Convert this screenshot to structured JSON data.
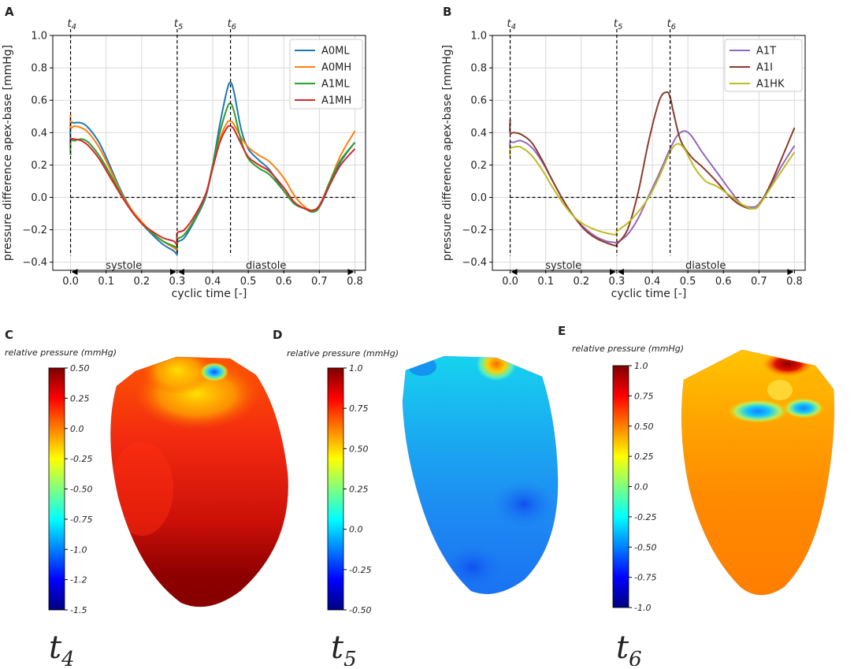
{
  "chart_data": [
    {
      "id": "A",
      "type": "line",
      "panel_label": "A",
      "xlabel": "cyclic time [-]",
      "ylabel": "pressure difference apex-base [mmHg]",
      "xlim": [
        -0.05,
        0.83
      ],
      "ylim": [
        -0.45,
        1.0
      ],
      "xticks": [
        0.0,
        0.1,
        0.2,
        0.3,
        0.4,
        0.5,
        0.6,
        0.7,
        0.8
      ],
      "xtick_labels": [
        "0.0",
        "0.1",
        "0.2",
        "0.3",
        "0.4",
        "0.5",
        "0.6",
        "0.7",
        "0.8"
      ],
      "yticks": [
        -0.4,
        -0.2,
        0.0,
        0.2,
        0.4,
        0.6,
        0.8,
        1.0
      ],
      "ytick_labels": [
        "−0.4",
        "−0.2",
        "0.0",
        "0.2",
        "0.4",
        "0.6",
        "0.8",
        "1.0"
      ],
      "grid": true,
      "legend_position": "top-right",
      "time_markers": [
        {
          "x": 0.0,
          "label": "t",
          "sub": "4"
        },
        {
          "x": 0.3,
          "label": "t",
          "sub": "5"
        },
        {
          "x": 0.45,
          "label": "t",
          "sub": "6"
        }
      ],
      "phases": [
        {
          "label": "systole",
          "from": 0.0,
          "to": 0.3
        },
        {
          "label": "diastole",
          "from": 0.3,
          "to": 0.8
        }
      ],
      "series": [
        {
          "name": "A0ML",
          "color": "#1f77b4",
          "x": [
            0.0,
            0.0,
            0.01,
            0.03,
            0.05,
            0.08,
            0.11,
            0.14,
            0.17,
            0.2,
            0.23,
            0.26,
            0.29,
            0.3,
            0.3,
            0.32,
            0.35,
            0.38,
            0.4,
            0.42,
            0.44,
            0.45,
            0.46,
            0.48,
            0.5,
            0.53,
            0.56,
            0.6,
            0.63,
            0.66,
            0.68,
            0.7,
            0.73,
            0.76,
            0.8
          ],
          "y": [
            0.3,
            0.45,
            0.46,
            0.46,
            0.43,
            0.34,
            0.2,
            0.05,
            -0.07,
            -0.16,
            -0.23,
            -0.29,
            -0.33,
            -0.35,
            -0.28,
            -0.25,
            -0.14,
            0.0,
            0.2,
            0.45,
            0.66,
            0.71,
            0.65,
            0.42,
            0.3,
            0.23,
            0.17,
            0.04,
            -0.04,
            -0.07,
            -0.08,
            -0.06,
            0.08,
            0.22,
            0.34
          ]
        },
        {
          "name": "A0MH",
          "color": "#ff7f0e",
          "x": [
            0.0,
            0.0,
            0.01,
            0.03,
            0.05,
            0.08,
            0.11,
            0.14,
            0.17,
            0.2,
            0.23,
            0.26,
            0.29,
            0.3,
            0.3,
            0.32,
            0.35,
            0.38,
            0.4,
            0.42,
            0.44,
            0.45,
            0.46,
            0.48,
            0.5,
            0.53,
            0.56,
            0.6,
            0.63,
            0.66,
            0.68,
            0.7,
            0.73,
            0.76,
            0.8
          ],
          "y": [
            0.51,
            0.43,
            0.44,
            0.43,
            0.4,
            0.31,
            0.18,
            0.04,
            -0.07,
            -0.15,
            -0.22,
            -0.27,
            -0.31,
            -0.32,
            -0.26,
            -0.23,
            -0.13,
            0.01,
            0.2,
            0.36,
            0.46,
            0.47,
            0.45,
            0.37,
            0.31,
            0.26,
            0.22,
            0.12,
            0.01,
            -0.06,
            -0.08,
            -0.05,
            0.1,
            0.26,
            0.41
          ]
        },
        {
          "name": "A1ML",
          "color": "#2ca02c",
          "x": [
            0.0,
            0.0,
            0.01,
            0.03,
            0.05,
            0.08,
            0.11,
            0.14,
            0.17,
            0.2,
            0.23,
            0.26,
            0.29,
            0.3,
            0.3,
            0.32,
            0.35,
            0.38,
            0.4,
            0.42,
            0.44,
            0.45,
            0.46,
            0.48,
            0.5,
            0.53,
            0.56,
            0.6,
            0.63,
            0.66,
            0.68,
            0.7,
            0.73,
            0.76,
            0.8
          ],
          "y": [
            0.26,
            0.35,
            0.35,
            0.36,
            0.34,
            0.26,
            0.15,
            0.03,
            -0.08,
            -0.16,
            -0.22,
            -0.27,
            -0.3,
            -0.31,
            -0.26,
            -0.23,
            -0.13,
            0.01,
            0.2,
            0.4,
            0.55,
            0.58,
            0.53,
            0.35,
            0.24,
            0.18,
            0.14,
            0.04,
            -0.04,
            -0.07,
            -0.09,
            -0.06,
            0.1,
            0.23,
            0.34
          ]
        },
        {
          "name": "A1MH",
          "color": "#d62728",
          "x": [
            0.0,
            0.0,
            0.01,
            0.03,
            0.05,
            0.08,
            0.11,
            0.14,
            0.17,
            0.2,
            0.23,
            0.26,
            0.29,
            0.3,
            0.3,
            0.32,
            0.35,
            0.38,
            0.4,
            0.42,
            0.44,
            0.45,
            0.46,
            0.48,
            0.5,
            0.53,
            0.56,
            0.6,
            0.63,
            0.66,
            0.68,
            0.7,
            0.73,
            0.76,
            0.8
          ],
          "y": [
            0.33,
            0.36,
            0.36,
            0.35,
            0.32,
            0.24,
            0.13,
            0.02,
            -0.08,
            -0.16,
            -0.21,
            -0.25,
            -0.27,
            -0.29,
            -0.22,
            -0.2,
            -0.11,
            0.02,
            0.18,
            0.34,
            0.43,
            0.44,
            0.42,
            0.33,
            0.25,
            0.2,
            0.16,
            0.06,
            -0.03,
            -0.07,
            -0.08,
            -0.05,
            0.08,
            0.2,
            0.3
          ]
        }
      ]
    },
    {
      "id": "B",
      "type": "line",
      "panel_label": "B",
      "xlabel": "cyclic time [-]",
      "ylabel": "pressure difference apex-base [mmHg]",
      "xlim": [
        -0.05,
        0.83
      ],
      "ylim": [
        -0.45,
        1.0
      ],
      "xticks": [
        0.0,
        0.1,
        0.2,
        0.3,
        0.4,
        0.5,
        0.6,
        0.7,
        0.8
      ],
      "xtick_labels": [
        "0.0",
        "0.1",
        "0.2",
        "0.3",
        "0.4",
        "0.5",
        "0.6",
        "0.7",
        "0.8"
      ],
      "yticks": [
        -0.4,
        -0.2,
        0.0,
        0.2,
        0.4,
        0.6,
        0.8,
        1.0
      ],
      "ytick_labels": [
        "−0.4",
        "−0.2",
        "0.0",
        "0.2",
        "0.4",
        "0.6",
        "0.8",
        "1.0"
      ],
      "grid": true,
      "legend_position": "top-right",
      "time_markers": [
        {
          "x": 0.0,
          "label": "t",
          "sub": "4"
        },
        {
          "x": 0.3,
          "label": "t",
          "sub": "5"
        },
        {
          "x": 0.45,
          "label": "t",
          "sub": "6"
        }
      ],
      "phases": [
        {
          "label": "systole",
          "from": 0.0,
          "to": 0.3
        },
        {
          "label": "diastole",
          "from": 0.3,
          "to": 0.8
        }
      ],
      "series": [
        {
          "name": "A1T",
          "color": "#9467bd",
          "x": [
            0.0,
            0.0,
            0.01,
            0.03,
            0.06,
            0.09,
            0.12,
            0.15,
            0.18,
            0.21,
            0.24,
            0.27,
            0.3,
            0.3,
            0.33,
            0.36,
            0.39,
            0.42,
            0.45,
            0.47,
            0.49,
            0.51,
            0.54,
            0.58,
            0.62,
            0.65,
            0.68,
            0.7,
            0.73,
            0.76,
            0.8
          ],
          "y": [
            0.3,
            0.34,
            0.34,
            0.35,
            0.31,
            0.22,
            0.1,
            -0.02,
            -0.12,
            -0.19,
            -0.24,
            -0.27,
            -0.28,
            -0.28,
            -0.23,
            -0.13,
            0.01,
            0.15,
            0.3,
            0.38,
            0.41,
            0.38,
            0.28,
            0.16,
            0.04,
            -0.04,
            -0.06,
            -0.04,
            0.06,
            0.18,
            0.32
          ]
        },
        {
          "name": "A1I",
          "color": "#8c3b2b",
          "x": [
            0.0,
            0.0,
            0.01,
            0.03,
            0.06,
            0.09,
            0.12,
            0.15,
            0.18,
            0.21,
            0.24,
            0.27,
            0.3,
            0.3,
            0.33,
            0.36,
            0.39,
            0.42,
            0.44,
            0.45,
            0.46,
            0.48,
            0.51,
            0.54,
            0.58,
            0.62,
            0.65,
            0.68,
            0.7,
            0.73,
            0.76,
            0.8
          ],
          "y": [
            0.48,
            0.4,
            0.4,
            0.39,
            0.34,
            0.23,
            0.1,
            -0.02,
            -0.12,
            -0.2,
            -0.25,
            -0.28,
            -0.3,
            -0.29,
            -0.2,
            0.03,
            0.35,
            0.6,
            0.65,
            0.62,
            0.52,
            0.35,
            0.25,
            0.19,
            0.1,
            0.0,
            -0.05,
            -0.07,
            -0.05,
            0.07,
            0.22,
            0.43
          ]
        },
        {
          "name": "A1HK",
          "color": "#bcbd22",
          "x": [
            0.0,
            0.0,
            0.01,
            0.03,
            0.06,
            0.09,
            0.12,
            0.15,
            0.18,
            0.21,
            0.24,
            0.27,
            0.3,
            0.3,
            0.33,
            0.36,
            0.39,
            0.42,
            0.45,
            0.47,
            0.49,
            0.52,
            0.55,
            0.58,
            0.62,
            0.65,
            0.68,
            0.7,
            0.73,
            0.76,
            0.8
          ],
          "y": [
            0.25,
            0.3,
            0.31,
            0.31,
            0.26,
            0.17,
            0.06,
            -0.04,
            -0.12,
            -0.17,
            -0.2,
            -0.22,
            -0.23,
            -0.21,
            -0.16,
            -0.09,
            0.0,
            0.13,
            0.28,
            0.33,
            0.3,
            0.18,
            0.1,
            0.07,
            0.01,
            -0.04,
            -0.07,
            -0.05,
            0.05,
            0.15,
            0.28
          ]
        }
      ]
    },
    {
      "id": "C",
      "type": "heatmap",
      "panel_label": "C",
      "colorbar_title": "relative pressure (mmHg)",
      "colorbar_range": [
        -1.5,
        0.5
      ],
      "colorbar_ticks": [
        "0.50",
        "0.25",
        "0.0",
        "-0.25",
        "-0.50",
        "-0.75",
        "-1.0",
        "-1.2",
        "-1.5"
      ],
      "time_label": "t",
      "time_sub": "4"
    },
    {
      "id": "D",
      "type": "heatmap",
      "panel_label": "D",
      "colorbar_title": "relative pressure (mmHg)",
      "colorbar_range": [
        -0.5,
        1.0
      ],
      "colorbar_ticks": [
        "1.0",
        "0.75",
        "0.50",
        "0.25",
        "0.0",
        "-0.25",
        "-0.50"
      ],
      "time_label": "t",
      "time_sub": "5"
    },
    {
      "id": "E",
      "type": "heatmap",
      "panel_label": "E",
      "colorbar_title": "relative pressure (mmHg)",
      "colorbar_range": [
        -1.0,
        1.0
      ],
      "colorbar_ticks": [
        "1.0",
        "0.75",
        "0.50",
        "0.25",
        "0.0",
        "-0.25",
        "-0.50",
        "-0.75",
        "-1.0"
      ],
      "time_label": "t",
      "time_sub": "6"
    }
  ]
}
